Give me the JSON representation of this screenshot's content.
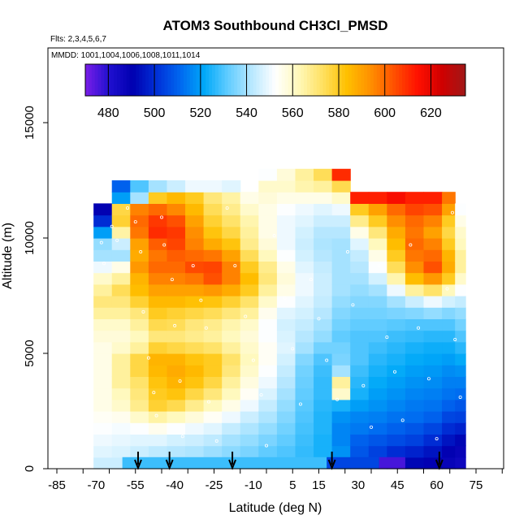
{
  "chart_data": {
    "type": "heatmap",
    "title": "ATOM3 Southbound CH3Cl_PMSD",
    "flights_label": "Flts: 2,3,4,5,6,7",
    "mmdd_label": "MMDD: 1001,1004,1006,1008,1011,1014",
    "xlabel": "Latitude (deg N)",
    "ylabel": "Altitude (m)",
    "xlim": [
      -90,
      90
    ],
    "ylim": [
      0,
      17500
    ],
    "x_tick_labels": [
      "-85",
      "-70",
      "-55",
      "-40",
      "-25",
      "-10",
      "5",
      "15",
      "30",
      "45",
      "60",
      "75"
    ],
    "x_tick_values": [
      -85,
      -70,
      -55,
      -40,
      -25,
      -10,
      5,
      15,
      30,
      45,
      60,
      75
    ],
    "y_tick_labels": [
      "0",
      "5000",
      "10000",
      "15000"
    ],
    "y_tick_values": [
      0,
      5000,
      10000,
      15000
    ],
    "colorbar": {
      "ticks": [
        "480",
        "500",
        "520",
        "540",
        "560",
        "580",
        "600",
        "620"
      ],
      "tick_values": [
        480,
        500,
        520,
        540,
        560,
        580,
        600,
        620
      ],
      "min": 470,
      "max": 635,
      "colors": [
        "#7a1ee8",
        "#2010d0",
        "#0000b0",
        "#0030d8",
        "#0068f0",
        "#00a8f8",
        "#60ccff",
        "#b8e8ff",
        "#ffffff",
        "#fff8b8",
        "#ffe060",
        "#ffc000",
        "#ff9000",
        "#ff5000",
        "#ff1000",
        "#d00000",
        "#a01818"
      ]
    },
    "markers": [
      -54,
      -42,
      -18,
      20,
      61
    ],
    "altitudes": [
      250,
      750,
      1250,
      1750,
      2250,
      2750,
      3250,
      3750,
      4250,
      4750,
      5250,
      5750,
      6250,
      6750,
      7250,
      7750,
      8250,
      8750,
      9250,
      9750,
      10250,
      10750,
      11250,
      11750,
      12250,
      12750
    ],
    "profiles": [
      {
        "lat": -71,
        "lat_end": -64,
        "alt_max": 11250,
        "values": [
          545,
          548,
          550,
          552,
          554,
          556,
          556,
          556,
          556,
          556,
          556,
          558,
          560,
          566,
          570,
          566,
          560,
          550,
          540,
          538,
          520,
          500,
          490,
          0,
          0,
          0
        ]
      },
      {
        "lat": -64,
        "lat_end": -57,
        "alt_max": 12250,
        "values": [
          545,
          547,
          549,
          551,
          555,
          560,
          562,
          566,
          566,
          566,
          560,
          558,
          560,
          566,
          570,
          574,
          566,
          556,
          540,
          545,
          565,
          578,
          576,
          520,
          510,
          0
        ]
      },
      {
        "lat": -57,
        "lat_end": -50,
        "alt_max": 12250,
        "values": [
          542,
          545,
          548,
          552,
          560,
          568,
          570,
          572,
          576,
          576,
          566,
          562,
          566,
          570,
          578,
          584,
          586,
          592,
          588,
          590,
          598,
          600,
          596,
          540,
          530,
          0
        ]
      },
      {
        "lat": -50,
        "lat_end": -43,
        "alt_max": 12250,
        "values": [
          540,
          543,
          548,
          555,
          565,
          578,
          580,
          582,
          585,
          586,
          578,
          570,
          575,
          580,
          585,
          590,
          596,
          600,
          598,
          602,
          610,
          608,
          600,
          580,
          540,
          0
        ]
      },
      {
        "lat": -43,
        "lat_end": -36,
        "alt_max": 12250,
        "values": [
          540,
          542,
          546,
          552,
          562,
          575,
          582,
          586,
          588,
          586,
          576,
          570,
          574,
          578,
          585,
          590,
          596,
          600,
          602,
          606,
          608,
          604,
          595,
          585,
          545,
          0
        ]
      },
      {
        "lat": -36,
        "lat_end": -29,
        "alt_max": 12250,
        "values": [
          538,
          541,
          545,
          550,
          558,
          568,
          576,
          582,
          585,
          582,
          574,
          568,
          570,
          576,
          583,
          590,
          598,
          605,
          600,
          596,
          594,
          590,
          585,
          580,
          550,
          0
        ]
      },
      {
        "lat": -29,
        "lat_end": -22,
        "alt_max": 12250,
        "values": [
          536,
          539,
          543,
          548,
          554,
          562,
          570,
          576,
          580,
          580,
          572,
          566,
          568,
          574,
          582,
          592,
          604,
          606,
          598,
          588,
          582,
          578,
          574,
          570,
          550,
          0
        ]
      },
      {
        "lat": -22,
        "lat_end": -15,
        "alt_max": 12250,
        "values": [
          534,
          537,
          540,
          544,
          550,
          556,
          562,
          566,
          570,
          572,
          566,
          562,
          564,
          570,
          578,
          588,
          596,
          596,
          590,
          582,
          576,
          572,
          568,
          565,
          548,
          0
        ]
      },
      {
        "lat": -15,
        "lat_end": -8,
        "alt_max": 11750,
        "values": [
          532,
          535,
          538,
          541,
          545,
          550,
          554,
          557,
          560,
          562,
          560,
          558,
          560,
          566,
          572,
          580,
          584,
          580,
          574,
          568,
          566,
          564,
          560,
          556,
          0,
          0
        ]
      },
      {
        "lat": -8,
        "lat_end": -1,
        "alt_max": 12750,
        "values": [
          530,
          532,
          535,
          538,
          541,
          544,
          547,
          550,
          552,
          554,
          554,
          552,
          552,
          555,
          560,
          566,
          570,
          568,
          562,
          558,
          556,
          556,
          556,
          558,
          560,
          552
        ]
      },
      {
        "lat": -1,
        "lat_end": 6,
        "alt_max": 12750,
        "values": [
          528,
          530,
          532,
          534,
          536,
          538,
          540,
          542,
          544,
          546,
          548,
          547,
          546,
          548,
          552,
          556,
          558,
          556,
          552,
          550,
          550,
          550,
          552,
          556,
          560,
          558
        ]
      },
      {
        "lat": 6,
        "lat_end": 13,
        "alt_max": 12750,
        "values": [
          526,
          527,
          528,
          529,
          530,
          531,
          532,
          533,
          534,
          536,
          540,
          542,
          544,
          546,
          548,
          550,
          550,
          548,
          546,
          545,
          546,
          548,
          550,
          556,
          564,
          566
        ]
      },
      {
        "lat": 13,
        "lat_end": 20,
        "alt_max": 12750,
        "values": [
          524,
          524,
          524,
          525,
          525,
          526,
          527,
          527,
          528,
          530,
          534,
          538,
          540,
          542,
          544,
          545,
          545,
          544,
          542,
          541,
          542,
          545,
          548,
          556,
          566,
          574
        ]
      },
      {
        "lat": 20,
        "lat_end": 27,
        "alt_max": 12750,
        "values": [
          520,
          518,
          516,
          516,
          518,
          524,
          560,
          566,
          540,
          535,
          534,
          532,
          534,
          536,
          538,
          540,
          540,
          540,
          540,
          540,
          542,
          545,
          550,
          560,
          575,
          610
        ]
      },
      {
        "lat": 27,
        "lat_end": 34,
        "alt_max": 12250,
        "values": [
          505,
          508,
          510,
          514,
          516,
          520,
          524,
          526,
          528,
          530,
          530,
          530,
          532,
          534,
          536,
          538,
          540,
          542,
          544,
          548,
          556,
          568,
          580,
          612,
          0,
          0
        ]
      },
      {
        "lat": 34,
        "lat_end": 41,
        "alt_max": 12250,
        "values": [
          500,
          504,
          508,
          512,
          515,
          518,
          520,
          522,
          524,
          526,
          528,
          530,
          532,
          534,
          536,
          540,
          546,
          552,
          556,
          562,
          570,
          580,
          590,
          612,
          0,
          0
        ]
      },
      {
        "lat": 41,
        "lat_end": 48,
        "alt_max": 12250,
        "values": [
          495,
          500,
          506,
          510,
          513,
          516,
          518,
          520,
          522,
          524,
          526,
          528,
          531,
          535,
          540,
          550,
          564,
          574,
          580,
          584,
          588,
          594,
          600,
          616,
          0,
          0
        ]
      },
      {
        "lat": 48,
        "lat_end": 55,
        "alt_max": 12250,
        "values": [
          492,
          498,
          504,
          508,
          512,
          514,
          516,
          518,
          520,
          522,
          524,
          527,
          530,
          536,
          545,
          566,
          584,
          594,
          598,
          600,
          598,
          600,
          606,
          612,
          0,
          0
        ]
      },
      {
        "lat": 55,
        "lat_end": 62,
        "alt_max": 12250,
        "values": [
          490,
          495,
          500,
          505,
          510,
          513,
          515,
          517,
          519,
          521,
          523,
          526,
          530,
          538,
          550,
          572,
          592,
          604,
          600,
          596,
          590,
          596,
          604,
          612,
          0,
          0
        ]
      },
      {
        "lat": 62,
        "lat_end": 67,
        "alt_max": 11750,
        "values": [
          488,
          490,
          495,
          500,
          505,
          510,
          513,
          515,
          517,
          520,
          523,
          526,
          530,
          536,
          546,
          562,
          580,
          588,
          586,
          580,
          576,
          580,
          590,
          598,
          0,
          0
        ]
      },
      {
        "lat": 67,
        "lat_end": 71,
        "alt_max": 11250,
        "values": [
          486,
          488,
          492,
          498,
          504,
          508,
          512,
          515,
          518,
          522,
          526,
          530,
          534,
          538,
          544,
          552,
          560,
          566,
          566,
          562,
          560,
          556,
          552,
          0,
          0,
          0
        ]
      }
    ],
    "low_alt_strip": [
      {
        "lat_start": -60,
        "lat_end": 18,
        "value": 528
      },
      {
        "lat_start": 18,
        "lat_end": 38,
        "value": 505
      },
      {
        "lat_start": 38,
        "lat_end": 48,
        "value": 476
      }
    ],
    "sample_points": [
      [
        -68,
        9800
      ],
      [
        -67,
        8900
      ],
      [
        -64,
        10500
      ],
      [
        -62,
        9900
      ],
      [
        -58,
        11300
      ],
      [
        -55,
        10700
      ],
      [
        -53,
        9400
      ],
      [
        -52,
        6800
      ],
      [
        -50,
        4800
      ],
      [
        -48,
        3300
      ],
      [
        -47,
        2300
      ],
      [
        -45,
        10900
      ],
      [
        -44,
        9700
      ],
      [
        -41,
        8200
      ],
      [
        -40,
        6200
      ],
      [
        -38,
        3800
      ],
      [
        -37,
        1400
      ],
      [
        -33,
        8800
      ],
      [
        -30,
        7300
      ],
      [
        -28,
        6100
      ],
      [
        -27,
        2900
      ],
      [
        -24,
        1200
      ],
      [
        -20,
        11300
      ],
      [
        -17,
        8800
      ],
      [
        -13,
        6600
      ],
      [
        -10,
        4700
      ],
      [
        -7,
        3200
      ],
      [
        -5,
        1000
      ],
      [
        -2,
        10100
      ],
      [
        2,
        7400
      ],
      [
        5,
        5200
      ],
      [
        8,
        2800
      ],
      [
        12,
        8200
      ],
      [
        15,
        6500
      ],
      [
        18,
        4700
      ],
      [
        22,
        3000
      ],
      [
        26,
        9400
      ],
      [
        28,
        7100
      ],
      [
        32,
        3600
      ],
      [
        35,
        1800
      ],
      [
        38,
        8800
      ],
      [
        41,
        5700
      ],
      [
        44,
        4200
      ],
      [
        47,
        2100
      ],
      [
        50,
        9700
      ],
      [
        53,
        6100
      ],
      [
        57,
        3900
      ],
      [
        60,
        1300
      ],
      [
        64,
        7800
      ],
      [
        67,
        5600
      ],
      [
        69,
        3100
      ],
      [
        66,
        11100
      ]
    ]
  }
}
